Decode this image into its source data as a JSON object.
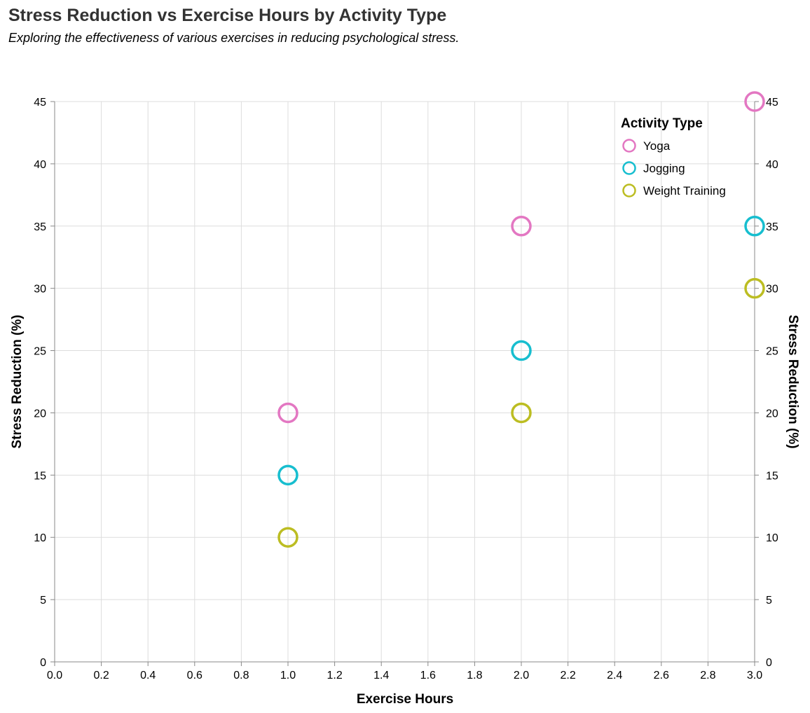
{
  "chart_data": {
    "type": "scatter",
    "title": "Stress Reduction vs Exercise Hours by Activity Type",
    "subtitle": "Exploring the effectiveness of various exercises in reducing psychological stress.",
    "xlabel": "Exercise Hours",
    "ylabel": "Stress Reduction (%)",
    "y2label": "Stress Reduction (%)",
    "xlim": [
      0,
      3
    ],
    "ylim": [
      0,
      45
    ],
    "x_ticks": [
      0.0,
      0.2,
      0.4,
      0.6,
      0.8,
      1.0,
      1.2,
      1.4,
      1.6,
      1.8,
      2.0,
      2.2,
      2.4,
      2.6,
      2.8,
      3.0
    ],
    "y_ticks": [
      0,
      5,
      10,
      15,
      20,
      25,
      30,
      35,
      40,
      45
    ],
    "grid": true,
    "legend": {
      "title": "Activity Type",
      "position": "top-right"
    },
    "series": [
      {
        "name": "Yoga",
        "color": "#e377c2",
        "points": [
          {
            "x": 1,
            "y": 20
          },
          {
            "x": 2,
            "y": 35
          },
          {
            "x": 3,
            "y": 45
          }
        ]
      },
      {
        "name": "Jogging",
        "color": "#17becf",
        "points": [
          {
            "x": 1,
            "y": 15
          },
          {
            "x": 2,
            "y": 25
          },
          {
            "x": 3,
            "y": 35
          }
        ]
      },
      {
        "name": "Weight Training",
        "color": "#bcbd22",
        "points": [
          {
            "x": 1,
            "y": 10
          },
          {
            "x": 2,
            "y": 20
          },
          {
            "x": 3,
            "y": 30
          }
        ]
      }
    ]
  }
}
